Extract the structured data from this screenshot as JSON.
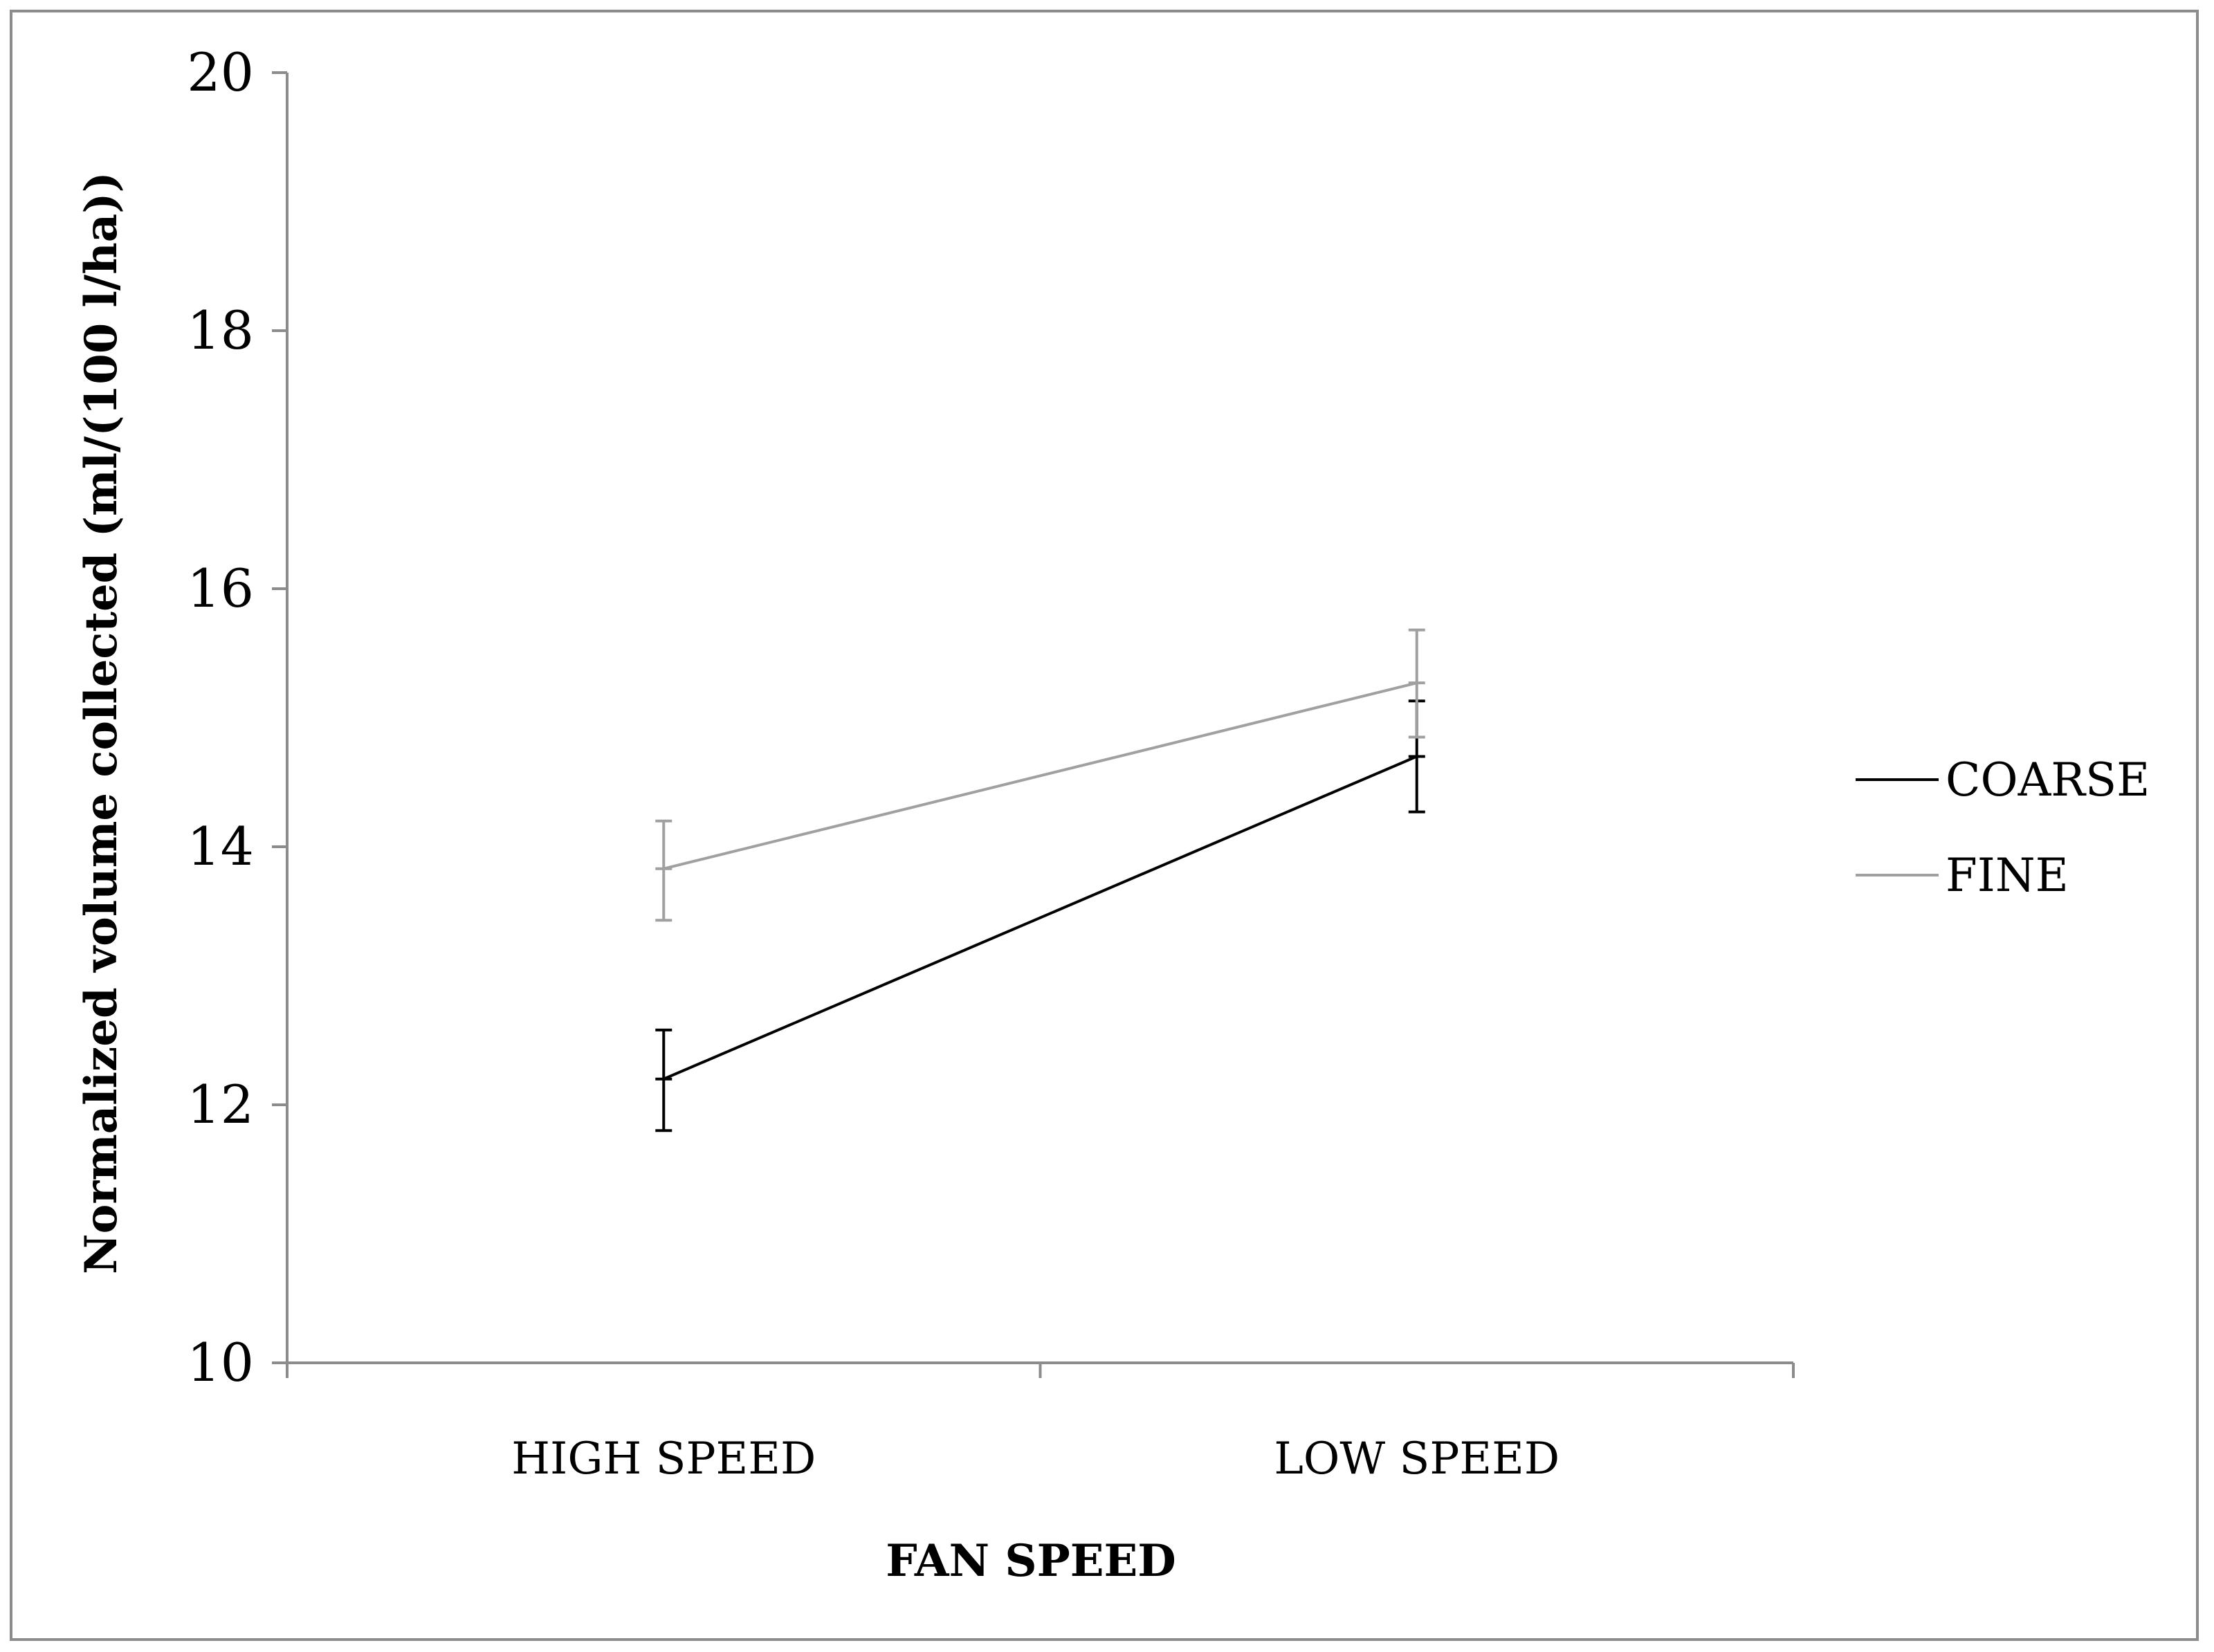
{
  "chart_data": {
    "type": "line",
    "title": "",
    "xlabel": "FAN SPEED",
    "ylabel": "Normalized volume collected (ml/(100 l/ha))",
    "categories": [
      "HIGH SPEED",
      "LOW SPEED"
    ],
    "ylim": [
      10,
      20
    ],
    "yticks": [
      "10",
      "12",
      "14",
      "16",
      "18",
      "20"
    ],
    "grid": false,
    "legend_position": "right",
    "series": [
      {
        "name": "COARSE",
        "color": "#000000",
        "values": [
          12.2,
          14.7
        ],
        "error_low": [
          11.8,
          14.27
        ],
        "error_high": [
          12.58,
          15.13
        ]
      },
      {
        "name": "FINE",
        "color": "#a0a0a0",
        "values": [
          13.83,
          15.27
        ],
        "error_low": [
          13.43,
          14.85
        ],
        "error_high": [
          14.2,
          15.68
        ]
      }
    ]
  }
}
